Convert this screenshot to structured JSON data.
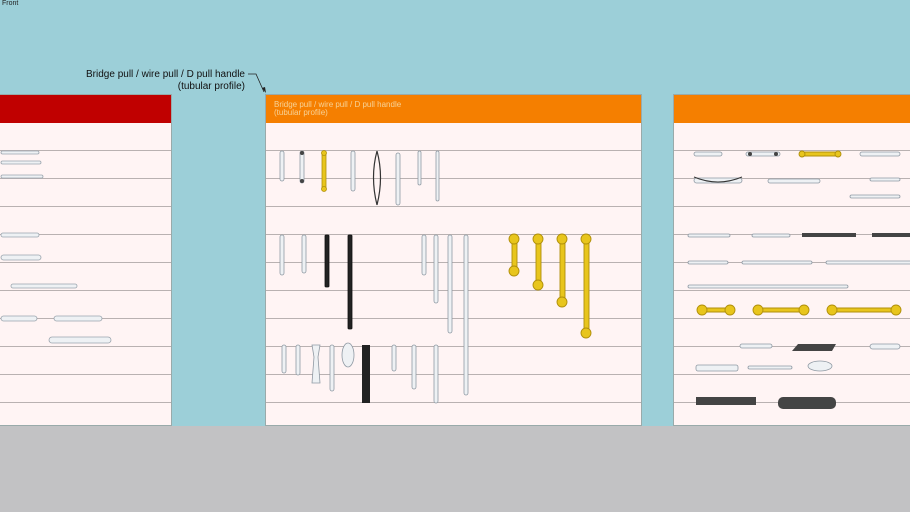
{
  "view": {
    "label": "Front"
  },
  "annotation": {
    "line1": "Bridge pull / wire pull / D pull handle",
    "line2": "(tubular profile)"
  },
  "panels": [
    {
      "name": "left-catalog-panel",
      "header_color": "#c00000"
    },
    {
      "name": "center-catalog-panel",
      "header_color": "#f57f00",
      "header_line1": "Bridge pull / wire pull / D pull handle",
      "header_line2": "(tubular profile)"
    },
    {
      "name": "right-catalog-panel",
      "header_color": "#f57f00"
    }
  ],
  "colors": {
    "sky": "#9ccfd8",
    "ground": "#c2c2c4",
    "panel": "#fff4f4",
    "gold": "#e8c51c",
    "black": "#222222",
    "silver": "#e4e8ee"
  }
}
